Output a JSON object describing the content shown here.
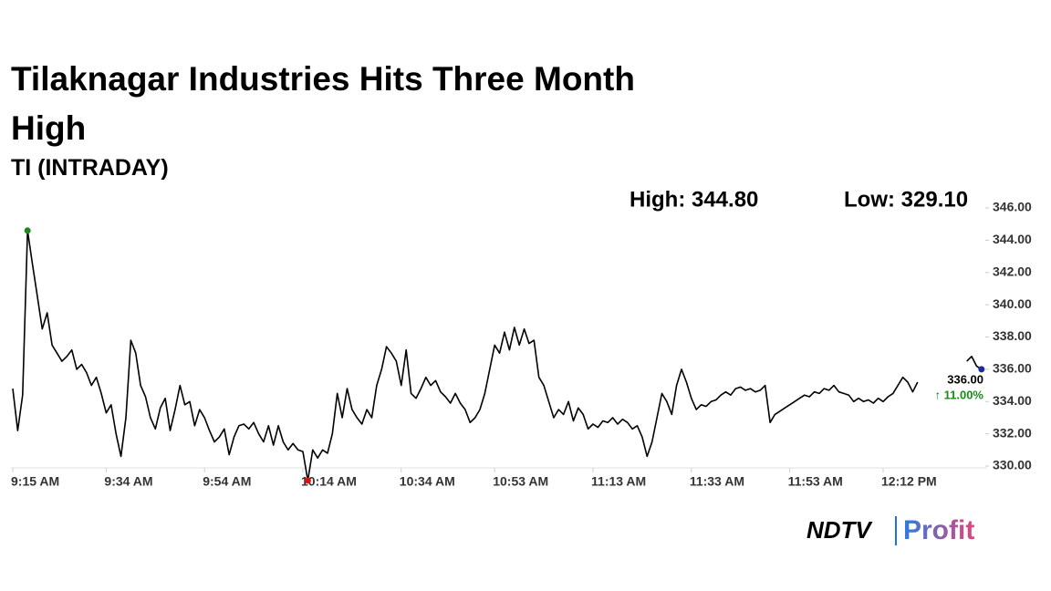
{
  "chart_data": {
    "type": "line",
    "title": "Tilaknagar Industries Hits Three Month High",
    "subtitle": "TI (INTRADAY)",
    "high_text": "High: 344.80",
    "low_text": "Low: 329.10",
    "last_text": "336.00",
    "change_text": "↑ 11.00%",
    "categories": [
      "9:15 AM",
      null,
      null,
      null,
      null,
      null,
      null,
      null,
      null,
      null,
      null,
      null,
      null,
      null,
      null,
      null,
      null,
      null,
      null,
      "9:34 AM",
      null,
      null,
      null,
      null,
      null,
      null,
      null,
      null,
      null,
      null,
      null,
      null,
      null,
      null,
      null,
      null,
      null,
      null,
      null,
      "9:54 AM",
      null,
      null,
      null,
      null,
      null,
      null,
      null,
      null,
      null,
      null,
      null,
      null,
      null,
      null,
      null,
      null,
      null,
      null,
      null,
      "10:14 AM",
      null,
      null,
      null,
      null,
      null,
      null,
      null,
      null,
      null,
      null,
      null,
      null,
      null,
      null,
      null,
      null,
      null,
      null,
      null,
      "10:34 AM",
      null,
      null,
      null,
      null,
      null,
      null,
      null,
      null,
      null,
      null,
      null,
      null,
      null,
      null,
      null,
      null,
      null,
      null,
      "10:53 AM",
      null,
      null,
      null,
      null,
      null,
      null,
      null,
      null,
      null,
      null,
      null,
      null,
      null,
      null,
      null,
      null,
      null,
      null,
      null,
      "11:13 AM",
      null,
      null,
      null,
      null,
      null,
      null,
      null,
      null,
      null,
      null,
      null,
      null,
      null,
      null,
      null,
      null,
      null,
      null,
      null,
      "11:33 AM",
      null,
      null,
      null,
      null,
      null,
      null,
      null,
      null,
      null,
      null,
      null,
      null,
      null,
      null,
      null,
      null,
      null,
      null,
      null,
      "11:53 AM",
      null,
      null,
      null,
      null,
      null,
      null,
      null,
      null,
      null,
      null,
      null,
      null,
      null,
      null,
      null,
      null,
      null,
      null,
      "12:12 PM",
      null,
      null,
      null,
      null,
      null,
      null,
      null,
      null,
      null,
      null,
      null,
      null,
      null,
      null,
      null,
      null,
      null,
      null,
      null,
      null
    ],
    "series": [
      {
        "name": "TI",
        "color": "#000000",
        "values": [
          334.8,
          332.2,
          334.4,
          344.6,
          342.5,
          340.5,
          338.5,
          339.5,
          337.5,
          337.0,
          336.5,
          336.8,
          337.2,
          336.0,
          336.3,
          335.8,
          335.0,
          335.5,
          334.5,
          333.3,
          333.8,
          332.0,
          330.6,
          333.0,
          337.8,
          337.0,
          335.0,
          334.3,
          333.0,
          332.3,
          333.6,
          334.2,
          332.2,
          333.5,
          335.0,
          333.8,
          334.0,
          332.5,
          333.5,
          333.0,
          332.2,
          331.5,
          331.8,
          332.3,
          330.7,
          331.8,
          332.5,
          332.6,
          332.3,
          332.7,
          332.0,
          331.5,
          332.5,
          331.3,
          332.5,
          331.5,
          331.0,
          331.4,
          331.0,
          330.9,
          329.1,
          331.0,
          330.5,
          331.0,
          330.8,
          332.0,
          334.5,
          333.0,
          334.8,
          333.5,
          333.0,
          332.6,
          333.5,
          333.0,
          335.0,
          336.0,
          337.4,
          337.0,
          336.5,
          335.0,
          337.2,
          334.5,
          334.2,
          334.8,
          335.5,
          335.0,
          335.3,
          334.6,
          334.3,
          333.9,
          334.5,
          333.9,
          333.5,
          332.7,
          333.0,
          333.5,
          334.5,
          336.0,
          337.5,
          337.0,
          338.3,
          337.2,
          338.6,
          337.5,
          338.5,
          337.6,
          337.8,
          335.5,
          335.0,
          334.0,
          333.0,
          333.5,
          333.2,
          334.0,
          332.8,
          333.6,
          333.2,
          332.3,
          332.6,
          332.4,
          332.8,
          332.7,
          333.0,
          332.6,
          332.9,
          332.7,
          332.3,
          332.5,
          331.8,
          330.6,
          331.5,
          333.0,
          334.5,
          334.0,
          333.2,
          335.0,
          336.0,
          335.2,
          334.2,
          333.5,
          333.8,
          333.7,
          334.0,
          334.1,
          334.4,
          334.6,
          334.4,
          334.8,
          334.9,
          334.7,
          334.8,
          334.6,
          334.7,
          335.0,
          332.7,
          333.2,
          333.4,
          333.6,
          333.8,
          334.0,
          334.2,
          334.4,
          334.3,
          334.6,
          334.5,
          334.8,
          334.7,
          335.0,
          334.6,
          334.5,
          334.4,
          334.0,
          334.2,
          334.0,
          334.1,
          333.9,
          334.2,
          334.0,
          334.3,
          334.5,
          335.0,
          335.5,
          335.2,
          334.6,
          335.2,
          null,
          null,
          null,
          null,
          null,
          null,
          null,
          null,
          null,
          336.5,
          336.8,
          336.2,
          336.0
        ]
      }
    ],
    "ylim": [
      329,
      346.5
    ],
    "yticks": [
      {
        "value": 330,
        "label": "330.00"
      },
      {
        "value": 332,
        "label": "332.00"
      },
      {
        "value": 334,
        "label": "334.00"
      },
      {
        "value": 336,
        "label": "336.00"
      },
      {
        "value": 338,
        "label": "338.00"
      },
      {
        "value": 340,
        "label": "340.00"
      },
      {
        "value": 342,
        "label": "342.00"
      },
      {
        "value": 344,
        "label": "344.00"
      },
      {
        "value": 346,
        "label": "346.00"
      }
    ],
    "high_color": "#1a8a1a",
    "low_color": "#e01010",
    "last_color": "#1a2aa0",
    "change_color": "#1a8a1a",
    "logo": {
      "brand": "NDTV",
      "name": "Profit"
    }
  }
}
